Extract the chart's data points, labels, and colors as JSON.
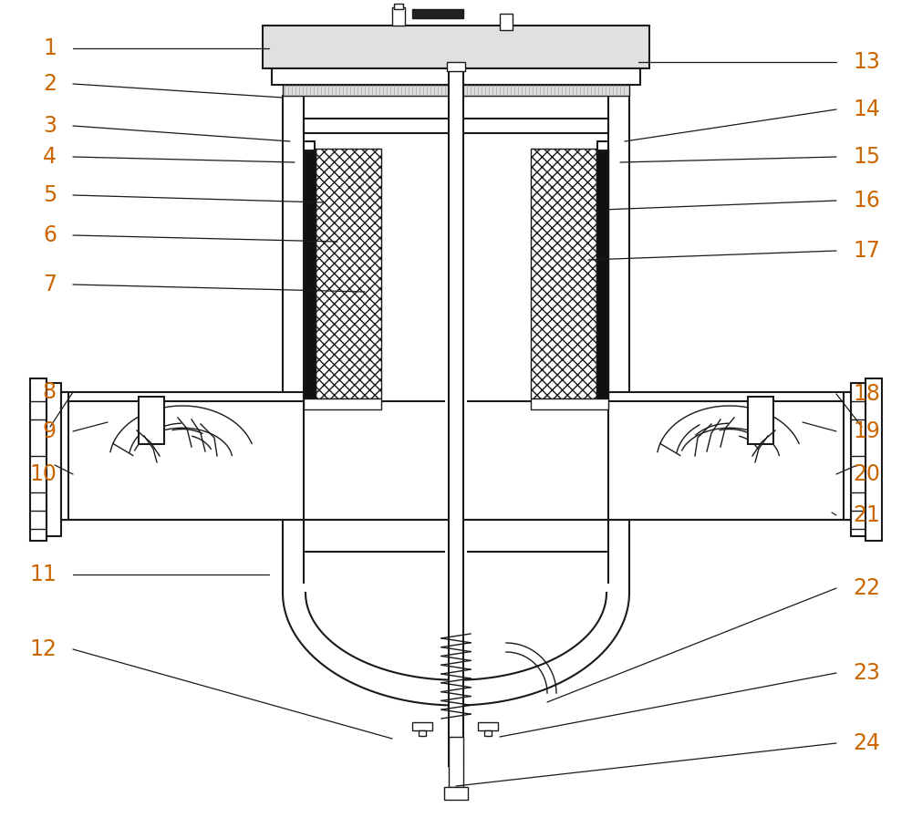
{
  "line_color": "#1a1a1a",
  "label_color": "#cc6600",
  "label_fontsize": 17,
  "figsize": [
    10.0,
    9.08
  ],
  "dpi": 100,
  "labels_left": [
    [
      "1",
      62,
      53,
      295,
      53
    ],
    [
      "2",
      62,
      92,
      310,
      107
    ],
    [
      "3",
      62,
      138,
      318,
      155
    ],
    [
      "4",
      62,
      172,
      323,
      178
    ],
    [
      "5",
      62,
      214,
      355,
      222
    ],
    [
      "6",
      62,
      258,
      370,
      265
    ],
    [
      "7",
      62,
      312,
      400,
      320
    ],
    [
      "8",
      62,
      430,
      55,
      468
    ],
    [
      "9",
      62,
      473,
      118,
      463
    ],
    [
      "10",
      62,
      520,
      60,
      510
    ],
    [
      "11",
      62,
      630,
      295,
      630
    ],
    [
      "12",
      62,
      712,
      430,
      810
    ]
  ],
  "labels_right": [
    [
      "13",
      935,
      68,
      700,
      68
    ],
    [
      "14",
      935,
      120,
      685,
      155
    ],
    [
      "15",
      935,
      172,
      680,
      178
    ],
    [
      "16",
      935,
      220,
      660,
      230
    ],
    [
      "17",
      935,
      275,
      645,
      285
    ],
    [
      "18",
      935,
      432,
      945,
      468
    ],
    [
      "19",
      935,
      473,
      880,
      463
    ],
    [
      "20",
      935,
      520,
      940,
      510
    ],
    [
      "21",
      935,
      565,
      912,
      562
    ],
    [
      "22",
      935,
      645,
      600,
      770
    ],
    [
      "23",
      935,
      738,
      548,
      808
    ],
    [
      "24",
      935,
      815,
      500,
      862
    ]
  ]
}
